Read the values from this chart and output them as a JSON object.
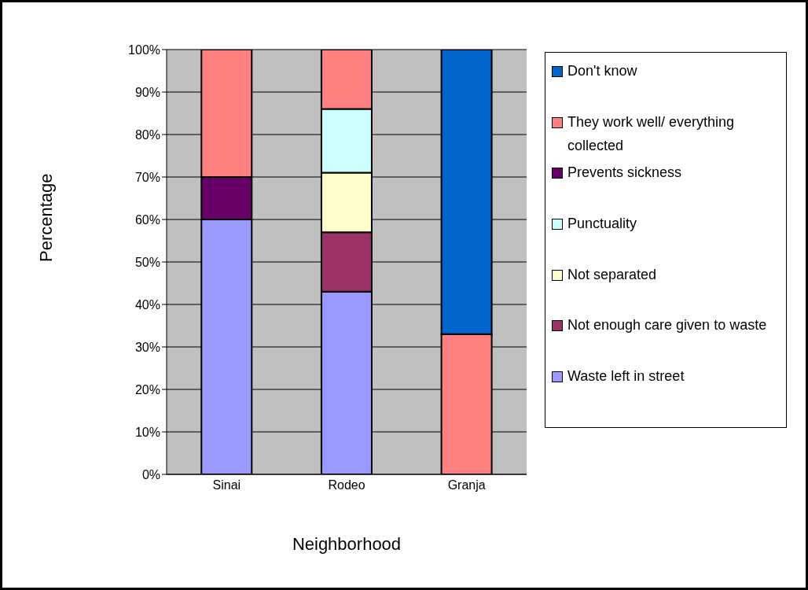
{
  "chart_data": {
    "type": "bar",
    "stacked": true,
    "xlabel": "Neighborhood",
    "ylabel": "Percentage",
    "categories": [
      "Sinai",
      "Rodeo",
      "Granja"
    ],
    "series": [
      {
        "name": "Waste left in street",
        "color": "#9999ff",
        "values": [
          60,
          43,
          null
        ]
      },
      {
        "name": "Not enough care given to waste",
        "color": "#993366",
        "values": [
          null,
          14,
          null
        ]
      },
      {
        "name": "Not separated",
        "color": "#ffffcc",
        "values": [
          null,
          14,
          null
        ]
      },
      {
        "name": "Punctuality",
        "color": "#ccffff",
        "values": [
          null,
          15,
          null
        ]
      },
      {
        "name": "Prevents sickness",
        "color": "#660066",
        "values": [
          10,
          null,
          null
        ]
      },
      {
        "name": "They work well/ everything collected",
        "color": "#ff8080",
        "values": [
          30,
          14,
          33
        ]
      },
      {
        "name": "Don't know",
        "color": "#0066cc",
        "values": [
          null,
          null,
          67
        ]
      }
    ],
    "ylim": [
      0,
      100
    ],
    "yticks": [
      {
        "value": 0,
        "label": "0%"
      },
      {
        "value": 10,
        "label": "10%"
      },
      {
        "value": 20,
        "label": "20%"
      },
      {
        "value": 30,
        "label": "30%"
      },
      {
        "value": 40,
        "label": "40%"
      },
      {
        "value": 50,
        "label": "50%"
      },
      {
        "value": 60,
        "label": "60%"
      },
      {
        "value": 70,
        "label": "70%"
      },
      {
        "value": 80,
        "label": "80%"
      },
      {
        "value": 90,
        "label": "90%"
      },
      {
        "value": 100,
        "label": "100%"
      }
    ],
    "grid": "y",
    "legend": "right"
  }
}
